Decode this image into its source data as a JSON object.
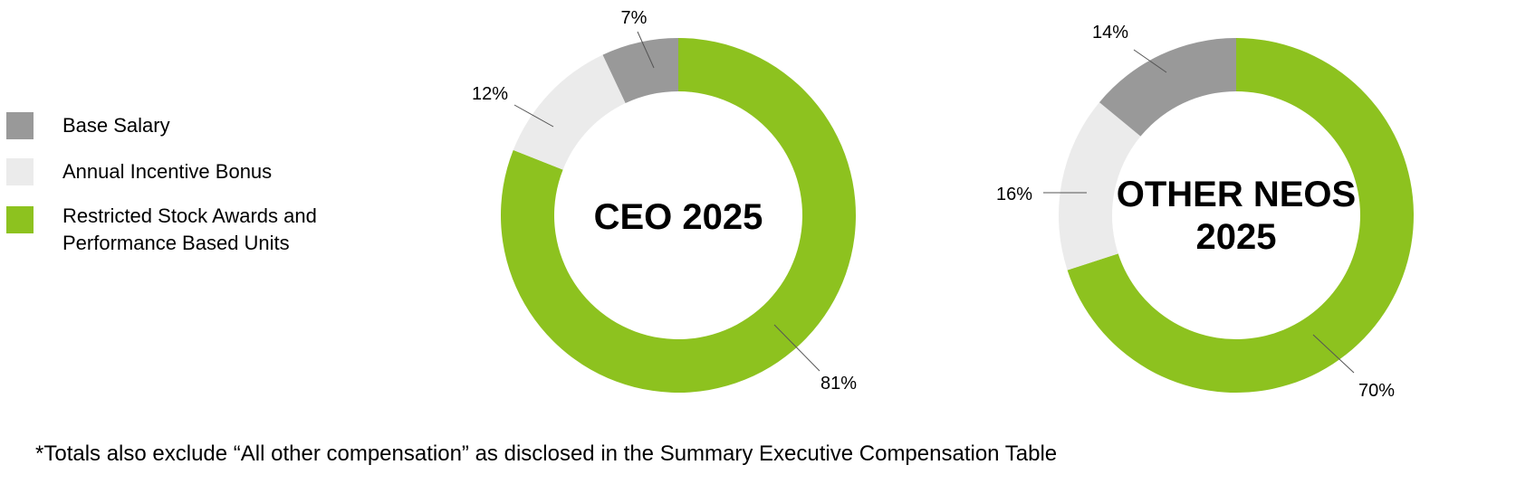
{
  "colors": {
    "base_salary": "#999999",
    "annual_incentive_bonus": "#EBEBEB",
    "stock_awards": "#8DC21F"
  },
  "legend": [
    {
      "label": "Base Salary",
      "color": "#999999"
    },
    {
      "label": "Annual Incentive Bonus",
      "color": "#EBEBEB"
    },
    {
      "label_line1": "Restricted Stock Awards and",
      "label_line2": "Performance Based Units",
      "color": "#8DC21F"
    }
  ],
  "chart_data": [
    {
      "type": "pie",
      "donut": true,
      "title": "CEO 2025",
      "categories": [
        "Restricted Stock Awards and Performance Based Units",
        "Annual Incentive Bonus",
        "Base Salary"
      ],
      "values": [
        81,
        12,
        7
      ],
      "labels": [
        "81%",
        "12%",
        "7%"
      ]
    },
    {
      "type": "pie",
      "donut": true,
      "title_line1": "OTHER NEOS",
      "title_line2": "2025",
      "categories": [
        "Restricted Stock Awards and Performance Based Units",
        "Annual Incentive Bonus",
        "Base Salary"
      ],
      "values": [
        70,
        16,
        14
      ],
      "labels": [
        "70%",
        "16%",
        "14%"
      ]
    }
  ],
  "footnote": "*Totals also exclude “All other compensation” as disclosed in the Summary Executive Compensation Table"
}
